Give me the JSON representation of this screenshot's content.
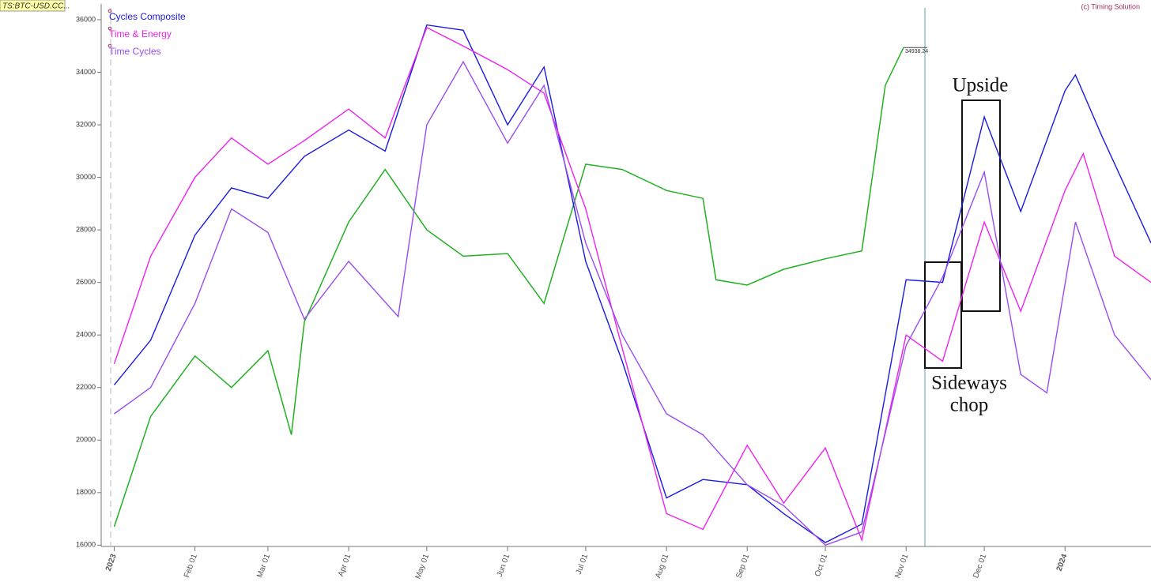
{
  "chart_data": {
    "type": "line",
    "symbol": "TS:BTC-USD.CC...",
    "credit": "(c) Timing Solution",
    "last_price_label": "34938.24",
    "xlim": [
      "2022-12-27",
      "2024-02-03"
    ],
    "ylim": [
      15950,
      36600
    ],
    "yticks": [
      16000,
      18000,
      20000,
      22000,
      24000,
      26000,
      28000,
      30000,
      32000,
      34000,
      36000
    ],
    "xticks": [
      {
        "value": "2023-01-01",
        "label": "2023"
      },
      {
        "value": "2023-02-01",
        "label": "Feb 01"
      },
      {
        "value": "2023-03-01",
        "label": "Mar 01"
      },
      {
        "value": "2023-04-01",
        "label": "Apr 01"
      },
      {
        "value": "2023-05-01",
        "label": "May 01"
      },
      {
        "value": "2023-06-01",
        "label": "Jun 01"
      },
      {
        "value": "2023-07-01",
        "label": "Jul 01"
      },
      {
        "value": "2023-08-01",
        "label": "Aug 01"
      },
      {
        "value": "2023-09-01",
        "label": "Sep 01"
      },
      {
        "value": "2023-10-01",
        "label": "Oct 01"
      },
      {
        "value": "2023-11-01",
        "label": "Nov 01"
      },
      {
        "value": "2023-12-01",
        "label": "Dec 01"
      },
      {
        "value": "2024-01-01",
        "label": "2024"
      }
    ],
    "price": {
      "color": "#22b022",
      "x": [
        "2023-01-01",
        "2023-01-15",
        "2023-02-01",
        "2023-02-15",
        "2023-03-01",
        "2023-03-10",
        "2023-03-15",
        "2023-04-01",
        "2023-04-15",
        "2023-05-01",
        "2023-05-15",
        "2023-06-01",
        "2023-06-15",
        "2023-07-01",
        "2023-07-15",
        "2023-08-01",
        "2023-08-15",
        "2023-08-20",
        "2023-09-01",
        "2023-09-15",
        "2023-10-01",
        "2023-10-15",
        "2023-10-24",
        "2023-10-31"
      ],
      "values": [
        16700,
        20900,
        23200,
        22000,
        23400,
        20200,
        24500,
        28300,
        30300,
        28000,
        27000,
        27100,
        25200,
        30500,
        30300,
        29500,
        29200,
        26100,
        25900,
        26500,
        26900,
        27200,
        33500,
        34938.24
      ]
    },
    "series": [
      {
        "name": "Cycles Composite",
        "color": "#1a1ae0",
        "x": [
          "2023-01-01",
          "2023-01-15",
          "2023-02-01",
          "2023-02-15",
          "2023-03-01",
          "2023-03-15",
          "2023-04-01",
          "2023-04-15",
          "2023-05-01",
          "2023-05-15",
          "2023-06-01",
          "2023-06-15",
          "2023-07-01",
          "2023-07-15",
          "2023-08-01",
          "2023-08-15",
          "2023-09-01",
          "2023-09-15",
          "2023-10-01",
          "2023-10-15",
          "2023-11-01",
          "2023-11-15",
          "2023-12-01",
          "2023-12-15",
          "2024-01-01",
          "2024-01-05",
          "2024-01-15",
          "2024-02-03"
        ],
        "values": [
          22100,
          23800,
          27800,
          29600,
          29200,
          30800,
          31800,
          31000,
          35800,
          35600,
          32000,
          34200,
          26800,
          23000,
          17800,
          18500,
          18300,
          17200,
          16100,
          16800,
          26100,
          26000,
          32300,
          28700,
          33300,
          33900,
          31600,
          27500
        ]
      },
      {
        "name": "Time & Energy",
        "color": "#ee22ee",
        "x": [
          "2023-01-01",
          "2023-01-15",
          "2023-02-01",
          "2023-02-15",
          "2023-03-01",
          "2023-03-15",
          "2023-04-01",
          "2023-04-15",
          "2023-05-01",
          "2023-05-15",
          "2023-06-01",
          "2023-06-15",
          "2023-07-01",
          "2023-07-15",
          "2023-08-01",
          "2023-08-15",
          "2023-09-01",
          "2023-09-15",
          "2023-10-01",
          "2023-10-15",
          "2023-11-01",
          "2023-11-15",
          "2023-12-01",
          "2023-12-15",
          "2024-01-01",
          "2024-01-08",
          "2024-01-20",
          "2024-02-03"
        ],
        "values": [
          22900,
          27000,
          30000,
          31500,
          30500,
          31400,
          32600,
          31500,
          35700,
          35000,
          34100,
          33200,
          28800,
          23500,
          17200,
          16600,
          19800,
          17600,
          19700,
          16200,
          24000,
          23000,
          28300,
          24900,
          29500,
          30900,
          27000,
          26000
        ]
      },
      {
        "name": "Time Cycles",
        "color": "#9a4cf0",
        "x": [
          "2023-01-01",
          "2023-01-15",
          "2023-02-01",
          "2023-02-15",
          "2023-03-01",
          "2023-03-15",
          "2023-04-01",
          "2023-04-20",
          "2023-05-01",
          "2023-05-15",
          "2023-06-01",
          "2023-06-15",
          "2023-07-01",
          "2023-07-15",
          "2023-08-01",
          "2023-08-15",
          "2023-09-01",
          "2023-09-15",
          "2023-10-01",
          "2023-10-15",
          "2023-11-01",
          "2023-11-15",
          "2023-12-01",
          "2023-12-15",
          "2023-12-25",
          "2024-01-05",
          "2024-01-20",
          "2024-02-03"
        ],
        "values": [
          21000,
          22000,
          25200,
          28800,
          27900,
          24600,
          26800,
          24700,
          32000,
          34400,
          31300,
          33500,
          27500,
          24000,
          21000,
          20200,
          18300,
          17500,
          16000,
          16500,
          23600,
          26200,
          30200,
          22500,
          21800,
          28300,
          24000,
          22300
        ]
      }
    ],
    "annotations": {
      "upside": "Upside",
      "sideways": [
        "Sideways",
        "chop"
      ]
    }
  }
}
